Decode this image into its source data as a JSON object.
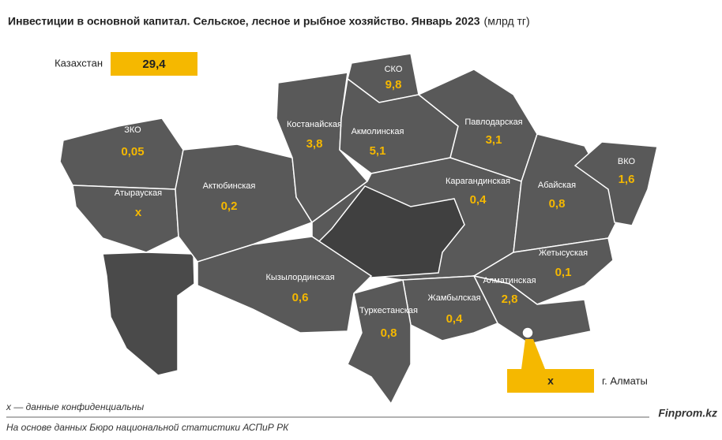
{
  "title": "Инвестиции в основной капитал. Сельское, лесное и рыбное хозяйство. Январь 2023",
  "unit": "(млрд тг)",
  "total": {
    "label": "Казахстан",
    "value": "29,4"
  },
  "regions": [
    {
      "name": "ЗКО",
      "value": "0,05"
    },
    {
      "name": "Атырауская",
      "value": "x"
    },
    {
      "name": "Актюбинская",
      "value": "0,2"
    },
    {
      "name": "Костанайская",
      "value": "3,8"
    },
    {
      "name": "СКО",
      "value": "9,8"
    },
    {
      "name": "Акмолинская",
      "value": "5,1"
    },
    {
      "name": "Павлодарская",
      "value": "3,1"
    },
    {
      "name": "Карагандинская",
      "value": "0,4"
    },
    {
      "name": "Абайская",
      "value": "0,8"
    },
    {
      "name": "ВКО",
      "value": "1,6"
    },
    {
      "name": "Жетысуская",
      "value": "0,1"
    },
    {
      "name": "Алматинская",
      "value": "2,8"
    },
    {
      "name": "Жамбылская",
      "value": "0,4"
    },
    {
      "name": "Туркестанская",
      "value": "0,8"
    },
    {
      "name": "Кызылординская",
      "value": "0,6"
    }
  ],
  "city": {
    "name": "г. Алматы",
    "value": "x"
  },
  "footnote": "x — данные конфиденциальны",
  "brand": "Finprom.kz",
  "source": "На основе данных Бюро национальной статистики АСПиР РК"
}
